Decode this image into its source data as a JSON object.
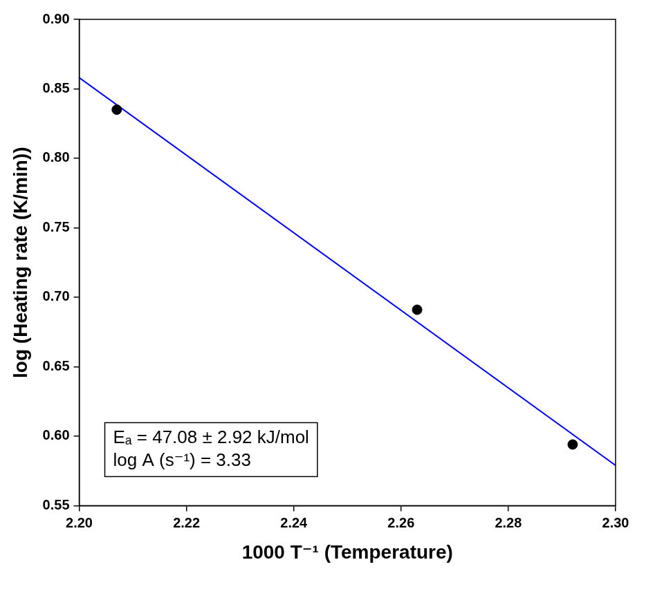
{
  "chart_data": {
    "type": "scatter",
    "x_label": "1000 T⁻¹ (Temperature)",
    "y_label": "log (Heating rate (K/min))",
    "annotations": [
      "Eₐ = 47.08 ± 2.92 kJ/mol",
      "log A (s⁻¹) = 3.33"
    ],
    "series": [
      {
        "type": "scatter",
        "color": "#000000",
        "marker": "circle",
        "x": [
          2.207,
          2.263,
          2.292
        ],
        "values": [
          0.835,
          0.691,
          0.594
        ]
      },
      {
        "type": "line",
        "color": "#0000ff",
        "line_style": "solid",
        "x": [
          2.2,
          2.3
        ],
        "values": [
          0.858,
          0.579
        ]
      }
    ],
    "xlim": [
      2.2,
      2.3
    ],
    "xticks": [
      {
        "value": 2.2,
        "label": "2.20"
      },
      2.22,
      2.24,
      2.26,
      2.28,
      {
        "value": 2.3,
        "label": "2.30"
      }
    ],
    "ylim": [
      0.55,
      0.9
    ],
    "yticks": [
      0.55,
      {
        "value": 0.6,
        "label": "0.60"
      },
      0.65,
      {
        "value": 0.7,
        "label": "0.70"
      },
      0.75,
      {
        "value": 0.8,
        "label": "0.80"
      },
      0.85,
      {
        "value": 0.9,
        "label": "0.90"
      }
    ],
    "grid": false
  }
}
